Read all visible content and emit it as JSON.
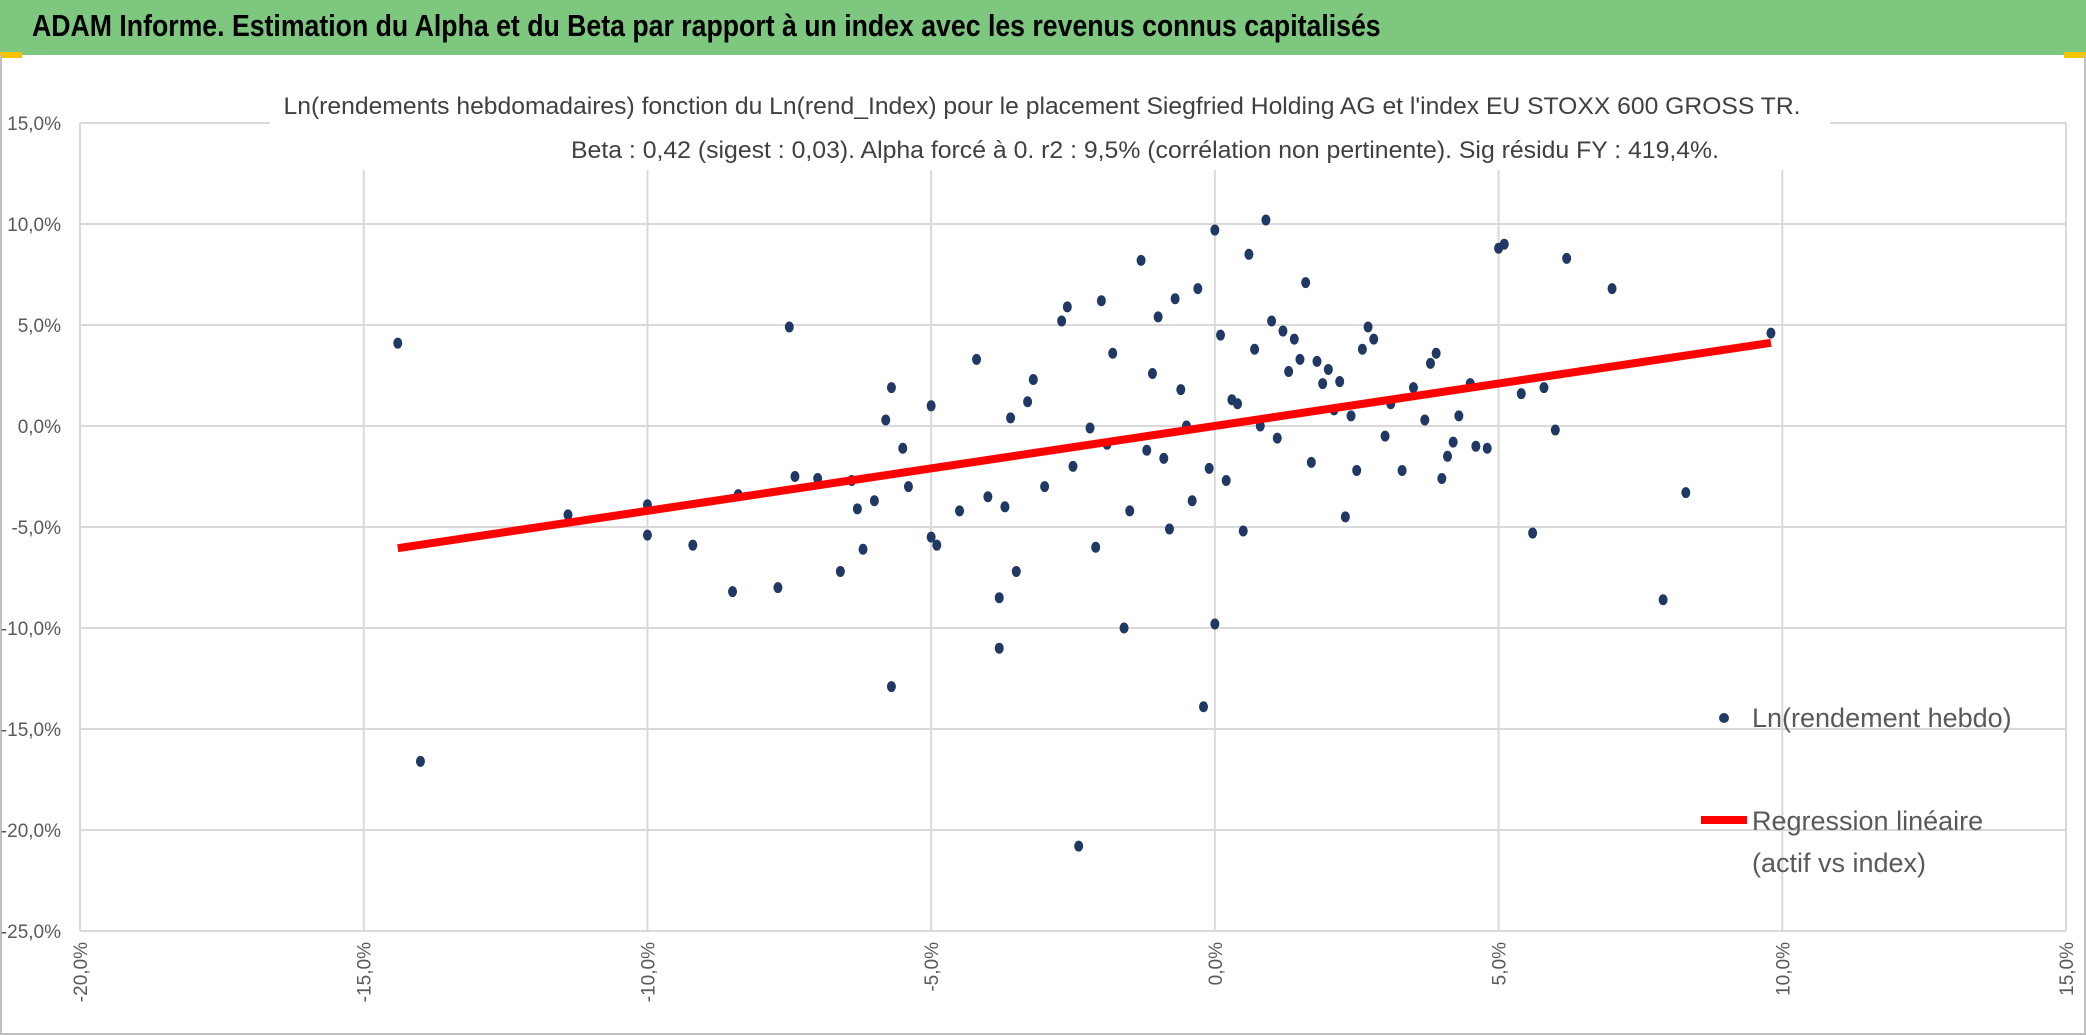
{
  "banner": {
    "title": "ADAM Informe. Estimation du Alpha et du Beta par rapport à un index avec les revenus connus capitalisés"
  },
  "colors": {
    "banner": "#7dc77e",
    "points": "#203864",
    "regression": "#ff0000",
    "grid": "#d9d9d9",
    "axis_text": "#595959"
  },
  "chart_data": {
    "type": "scatter",
    "title_line1": "Ln(rendements hebdomadaires) fonction du Ln(rend_Index) pour le placement Siegfried Holding AG et l'index EU STOXX 600 GROSS TR.",
    "title_line2": "Beta : 0,42 (sigest : 0,03). Alpha forcé à 0. r2 : 9,5% (corrélation non pertinente). Sig résidu FY : 419,4%.",
    "xlim": [
      -0.2,
      0.15
    ],
    "ylim": [
      -0.25,
      0.15
    ],
    "x_ticks": [
      -0.2,
      -0.15,
      -0.1,
      -0.05,
      0.0,
      0.05,
      0.1,
      0.15
    ],
    "x_tick_labels": [
      "-20,0%",
      "-15,0%",
      "-10,0%",
      "-5,0%",
      "0,0%",
      "5,0%",
      "10,0%",
      "15,0%"
    ],
    "y_ticks": [
      0.15,
      0.1,
      0.05,
      0.0,
      -0.05,
      -0.1,
      -0.15,
      -0.2,
      -0.25
    ],
    "y_tick_labels": [
      "15,0%",
      "10,0%",
      "5,0%",
      "0,0%",
      "-5,0%",
      "-10,0%",
      "-15,0%",
      "-20,0%",
      "-25,0%"
    ],
    "grid": true,
    "series": [
      {
        "name": "Ln(rendement hebdo)",
        "kind": "scatter",
        "x": [
          -0.144,
          -0.14,
          -0.114,
          -0.1,
          -0.1,
          -0.092,
          -0.085,
          -0.084,
          -0.077,
          -0.075,
          -0.074,
          -0.07,
          -0.066,
          -0.064,
          -0.063,
          -0.062,
          -0.06,
          -0.058,
          -0.057,
          -0.057,
          -0.055,
          -0.054,
          -0.05,
          -0.05,
          -0.049,
          -0.045,
          -0.042,
          -0.04,
          -0.038,
          -0.038,
          -0.037,
          -0.036,
          -0.035,
          -0.033,
          -0.032,
          -0.03,
          -0.027,
          -0.026,
          -0.025,
          -0.024,
          -0.022,
          -0.021,
          -0.02,
          -0.019,
          -0.018,
          -0.016,
          -0.015,
          -0.013,
          -0.012,
          -0.011,
          -0.01,
          -0.009,
          -0.008,
          -0.007,
          -0.006,
          -0.005,
          -0.004,
          -0.003,
          -0.002,
          -0.001,
          0.0,
          0.0,
          0.001,
          0.002,
          0.003,
          0.004,
          0.005,
          0.006,
          0.007,
          0.008,
          0.009,
          0.01,
          0.011,
          0.012,
          0.013,
          0.014,
          0.015,
          0.016,
          0.017,
          0.018,
          0.019,
          0.02,
          0.021,
          0.022,
          0.023,
          0.024,
          0.025,
          0.026,
          0.027,
          0.028,
          0.03,
          0.031,
          0.033,
          0.035,
          0.037,
          0.038,
          0.039,
          0.04,
          0.041,
          0.042,
          0.043,
          0.045,
          0.046,
          0.048,
          0.05,
          0.051,
          0.054,
          0.056,
          0.058,
          0.06,
          0.062,
          0.07,
          0.079,
          0.083,
          0.098
        ],
        "y": [
          0.041,
          -0.166,
          -0.044,
          -0.039,
          -0.054,
          -0.059,
          -0.082,
          -0.034,
          -0.08,
          0.049,
          -0.025,
          -0.026,
          -0.072,
          -0.027,
          -0.041,
          -0.061,
          -0.037,
          0.003,
          -0.129,
          0.019,
          -0.011,
          -0.03,
          -0.055,
          0.01,
          -0.059,
          -0.042,
          0.033,
          -0.035,
          -0.11,
          -0.085,
          -0.04,
          0.004,
          -0.072,
          0.012,
          0.023,
          -0.03,
          0.052,
          0.059,
          -0.02,
          -0.208,
          -0.001,
          -0.06,
          0.062,
          -0.009,
          0.036,
          -0.1,
          -0.042,
          0.082,
          -0.012,
          0.026,
          0.054,
          -0.016,
          -0.051,
          0.063,
          0.018,
          0.0,
          -0.037,
          0.068,
          -0.139,
          -0.021,
          0.097,
          -0.098,
          0.045,
          -0.027,
          0.013,
          0.011,
          -0.052,
          0.085,
          0.038,
          0.0,
          0.102,
          0.052,
          -0.006,
          0.047,
          0.027,
          0.043,
          0.033,
          0.071,
          -0.018,
          0.032,
          0.021,
          0.028,
          0.008,
          0.022,
          -0.045,
          0.005,
          -0.022,
          0.038,
          0.049,
          0.043,
          -0.005,
          0.011,
          -0.022,
          0.019,
          0.003,
          0.031,
          0.036,
          -0.026,
          -0.015,
          -0.008,
          0.005,
          0.021,
          -0.01,
          -0.011,
          0.088,
          0.09,
          0.016,
          -0.053,
          0.019,
          -0.002,
          0.083,
          0.068,
          -0.086,
          -0.033,
          0.046
        ]
      },
      {
        "name": "Regression linéaire (actif vs index)",
        "kind": "line",
        "x": [
          -0.144,
          0.098
        ],
        "y": [
          -0.0605,
          0.0412
        ]
      }
    ],
    "legend": {
      "position": "right",
      "scatter_label": "Ln(rendement hebdo)",
      "line_label_1": "Regression linéaire",
      "line_label_2": "(actif vs index)"
    }
  }
}
